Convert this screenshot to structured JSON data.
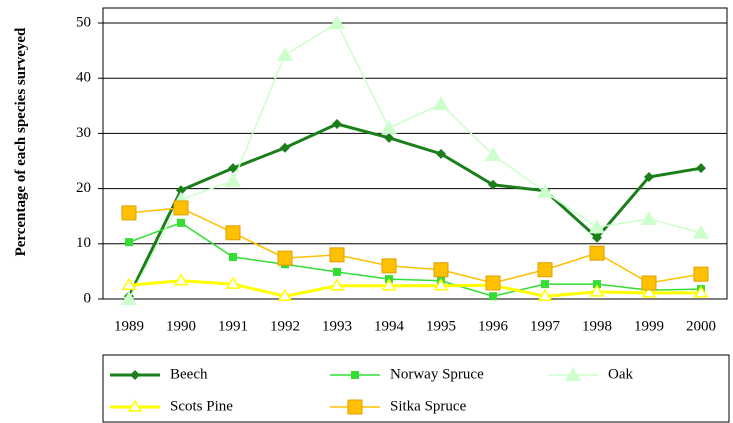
{
  "chart_data": {
    "type": "line",
    "y_label": "Percentage of each species surveyed",
    "categories": [
      "1989",
      "1990",
      "1991",
      "1992",
      "1993",
      "1994",
      "1995",
      "1996",
      "1997",
      "1998",
      "1999",
      "2000"
    ],
    "series": [
      {
        "name": "Beech",
        "color": "#1a7f1a",
        "marker": "diamond",
        "values": [
          0.5,
          19.7,
          23.7,
          27.4,
          31.7,
          29.2,
          26.3,
          20.7,
          19.6,
          11.1,
          22.1,
          23.7
        ]
      },
      {
        "name": "Norway Spruce",
        "color": "#33dd33",
        "marker": "square",
        "values": [
          10.3,
          13.8,
          7.6,
          6.3,
          4.9,
          3.6,
          3.3,
          0.5,
          2.7,
          2.7,
          1.6,
          1.8
        ]
      },
      {
        "name": "Oak",
        "color": "#ccffcc",
        "marker": "triangle",
        "values": [
          0,
          18,
          21.4,
          44.2,
          50,
          31,
          35.3,
          26.1,
          19.4,
          13,
          14.5,
          12
        ]
      },
      {
        "name": "Scots Pine",
        "color": "#ffff00",
        "marker": "triangle-open",
        "values": [
          2.5,
          3.3,
          2.7,
          0.5,
          2.4,
          2.4,
          2.4,
          2.5,
          0.5,
          1.3,
          1.1,
          1.1
        ]
      },
      {
        "name": "Sitka Spruce",
        "color": "#ffc000",
        "marker": "big-square",
        "values": [
          15.6,
          16.5,
          12,
          7.4,
          8,
          6,
          5.3,
          2.9,
          5.3,
          8.3,
          2.9,
          4.5
        ]
      }
    ],
    "ylim": [
      0,
      50
    ],
    "yticks": [
      0,
      10,
      20,
      30,
      40,
      50
    ],
    "grid": true,
    "legend": "bottom"
  }
}
